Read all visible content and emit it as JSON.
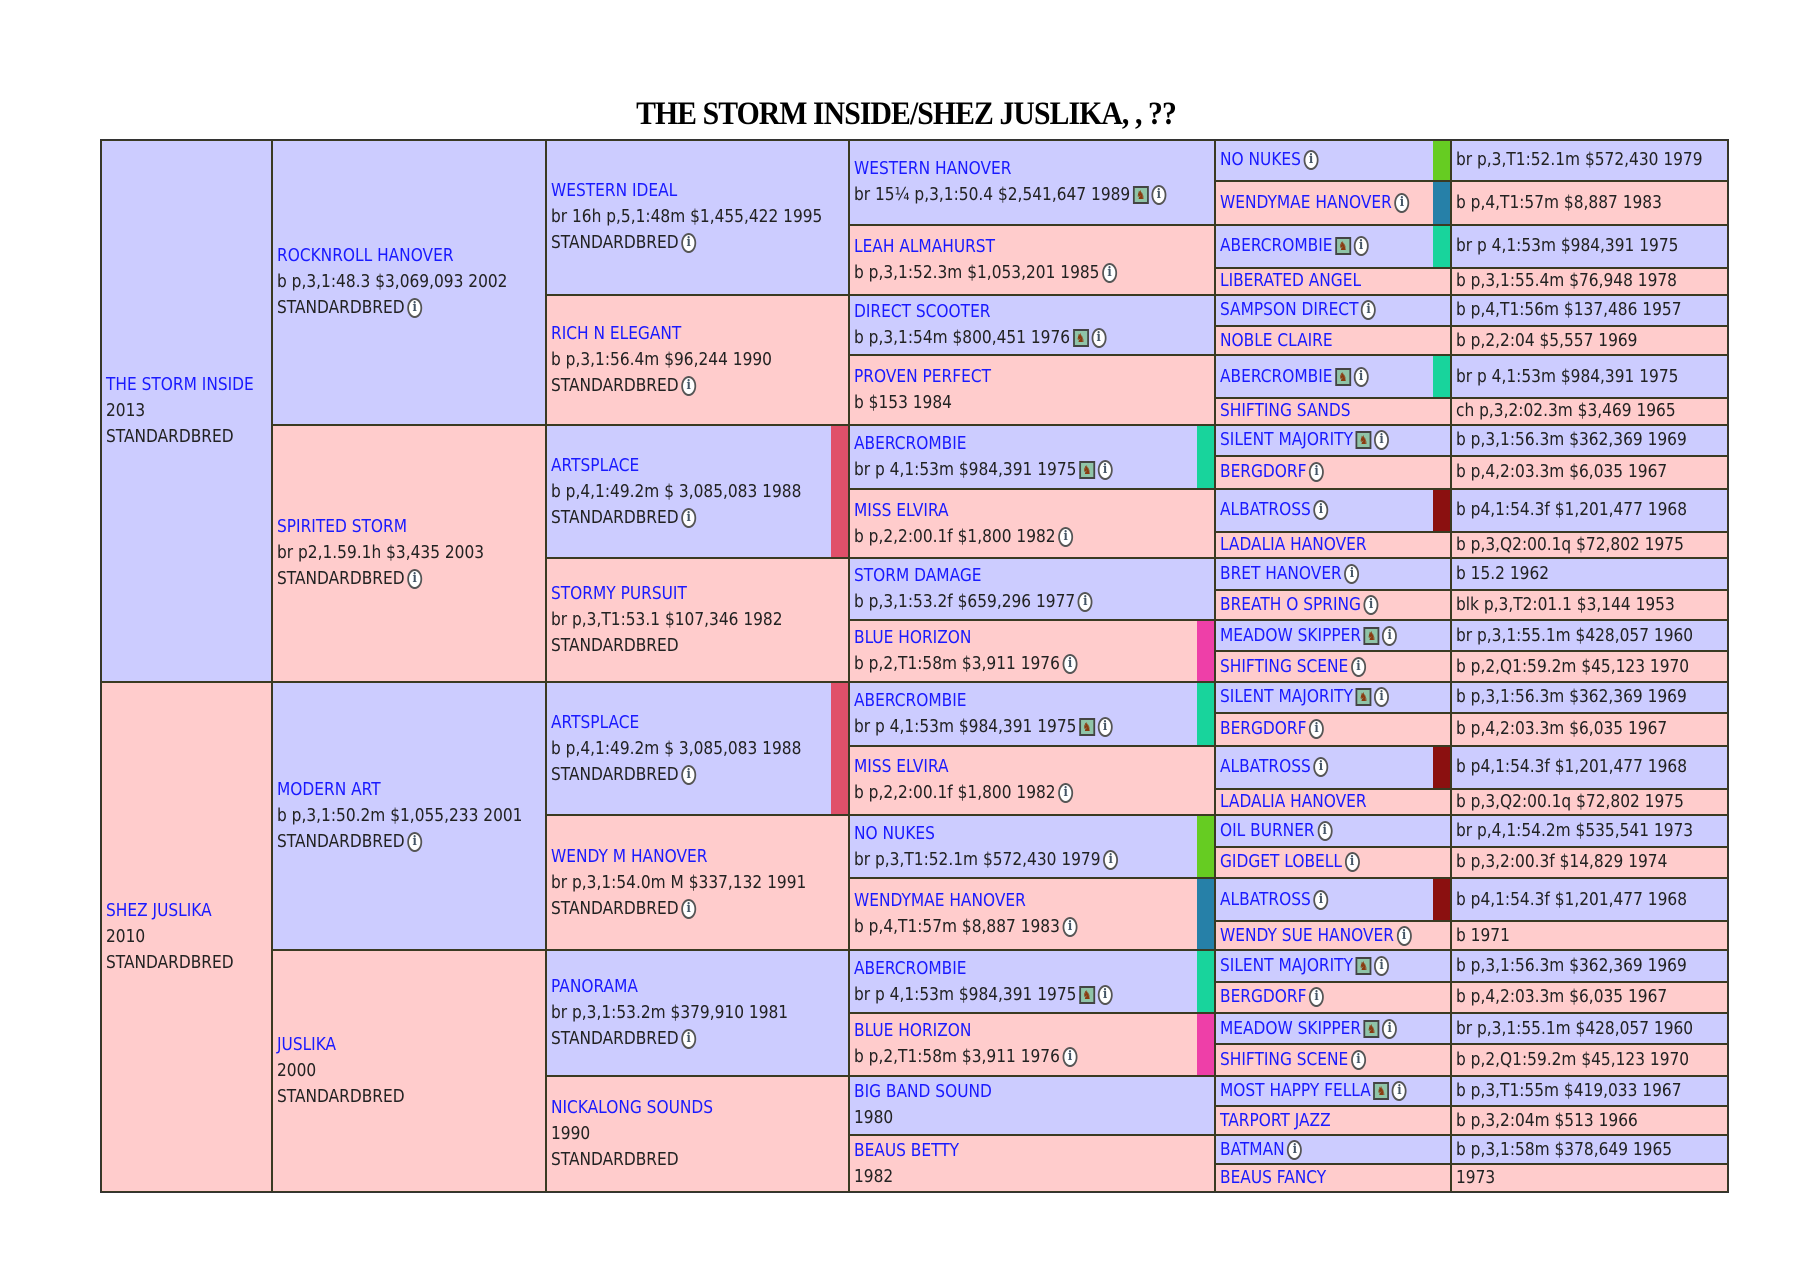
{
  "title": "THE STORM INSIDE/SHEZ JUSLIKA, , ??",
  "icons": {
    "info": "info-icon",
    "photo": "horse-photo-icon"
  },
  "colors": {
    "sire_bg": "#ccccff",
    "dam_bg": "#ffcccc",
    "name_link": "#1a1aff",
    "bar_green": "#66cc22",
    "bar_blue": "#2680a8",
    "bar_teal": "#18d49c",
    "bar_darkred": "#8b1010",
    "bar_crimson": "#e0506a",
    "bar_magenta": "#ee3fa8"
  },
  "gen1": [
    {
      "name": "THE STORM INSIDE",
      "lines": [
        "2013",
        "STANDARDBRED"
      ]
    },
    {
      "name": "SHEZ JUSLIKA",
      "lines": [
        "2010",
        "STANDARDBRED"
      ]
    }
  ],
  "gen2": [
    {
      "name": "ROCKNROLL HANOVER",
      "lines": [
        "b p,3,1:48.3 $3,069,093 2002",
        "STANDARDBRED"
      ],
      "info": true
    },
    {
      "name": "SPIRITED STORM",
      "lines": [
        "br p2,1.59.1h $3,435 2003",
        "STANDARDBRED"
      ],
      "info": true
    },
    {
      "name": "MODERN ART",
      "lines": [
        "b p,3,1:50.2m $1,055,233 2001",
        "STANDARDBRED"
      ],
      "info": true
    },
    {
      "name": "JUSLIKA",
      "lines": [
        "2000",
        "STANDARDBRED"
      ]
    }
  ],
  "gen3": [
    {
      "name": "WESTERN IDEAL",
      "lines": [
        "br 16h p,5,1:48m $1,455,422 1995",
        "STANDARDBRED"
      ],
      "info": true
    },
    {
      "name": "RICH N ELEGANT",
      "lines": [
        "b p,3,1:56.4m $96,244 1990",
        "STANDARDBRED"
      ],
      "info": true
    },
    {
      "name": "ARTSPLACE",
      "lines": [
        "b p,4,1:49.2m $ 3,085,083 1988",
        "STANDARDBRED"
      ],
      "info": true,
      "bar": "#e0506a"
    },
    {
      "name": "STORMY PURSUIT",
      "lines": [
        "br p,3,T1:53.1 $107,346 1982",
        "STANDARDBRED"
      ]
    },
    {
      "name": "ARTSPLACE",
      "lines": [
        "b p,4,1:49.2m $ 3,085,083 1988",
        "STANDARDBRED"
      ],
      "info": true,
      "bar": "#e0506a"
    },
    {
      "name": "WENDY M HANOVER",
      "lines": [
        "br p,3,1:54.0m M $337,132 1991",
        "STANDARDBRED"
      ],
      "info": true
    },
    {
      "name": "PANORAMA",
      "lines": [
        "br p,3,1:53.2m $379,910 1981",
        "STANDARDBRED"
      ],
      "info": true
    },
    {
      "name": "NICKALONG SOUNDS",
      "lines": [
        "1990",
        "STANDARDBRED"
      ]
    }
  ],
  "gen4": [
    {
      "name": "WESTERN HANOVER",
      "lines": [
        "br 15¼ p,3,1:50.4 $2,541,647 1989"
      ],
      "photo": true,
      "info": true
    },
    {
      "name": "LEAH ALMAHURST",
      "lines": [
        "b p,3,1:52.3m $1,053,201 1985"
      ],
      "info": true
    },
    {
      "name": "DIRECT SCOOTER",
      "lines": [
        "b p,3,1:54m $800,451 1976"
      ],
      "photo": true,
      "info": true
    },
    {
      "name": "PROVEN PERFECT",
      "lines": [
        "b $153 1984"
      ]
    },
    {
      "name": "ABERCROMBIE",
      "lines": [
        "br p 4,1:53m $984,391 1975"
      ],
      "photo": true,
      "info": true,
      "bar": "#18d49c"
    },
    {
      "name": "MISS ELVIRA",
      "lines": [
        "b p,2,2:00.1f $1,800 1982"
      ],
      "info": true
    },
    {
      "name": "STORM DAMAGE",
      "lines": [
        "b p,3,1:53.2f $659,296 1977"
      ],
      "info": true
    },
    {
      "name": "BLUE HORIZON",
      "lines": [
        "b p,2,T1:58m $3,911 1976"
      ],
      "info": true,
      "bar": "#ee3fa8"
    },
    {
      "name": "ABERCROMBIE",
      "lines": [
        "br p 4,1:53m $984,391 1975"
      ],
      "photo": true,
      "info": true,
      "bar": "#18d49c"
    },
    {
      "name": "MISS ELVIRA",
      "lines": [
        "b p,2,2:00.1f $1,800 1982"
      ],
      "info": true
    },
    {
      "name": "NO NUKES",
      "lines": [
        "br p,3,T1:52.1m $572,430 1979"
      ],
      "info": true,
      "bar": "#66cc22"
    },
    {
      "name": "WENDYMAE HANOVER",
      "lines": [
        "b p,4,T1:57m $8,887 1983"
      ],
      "info": true,
      "bar": "#2680a8"
    },
    {
      "name": "ABERCROMBIE",
      "lines": [
        "br p 4,1:53m $984,391 1975"
      ],
      "photo": true,
      "info": true,
      "bar": "#18d49c"
    },
    {
      "name": "BLUE HORIZON",
      "lines": [
        "b p,2,T1:58m $3,911 1976"
      ],
      "info": true,
      "bar": "#ee3fa8"
    },
    {
      "name": "BIG BAND SOUND",
      "lines": [
        "1980"
      ]
    },
    {
      "name": "BEAUS BETTY",
      "lines": [
        "1982"
      ]
    }
  ],
  "gen5": [
    {
      "name": "NO NUKES",
      "record": "br p,3,T1:52.1m $572,430 1979",
      "info": true,
      "bar": "#66cc22"
    },
    {
      "name": "WENDYMAE HANOVER",
      "record": "b p,4,T1:57m $8,887 1983",
      "info": true,
      "bar": "#2680a8"
    },
    {
      "name": "ABERCROMBIE",
      "record": "br p 4,1:53m $984,391 1975",
      "photo": true,
      "info": true,
      "bar": "#18d49c"
    },
    {
      "name": "LIBERATED ANGEL",
      "record": "b p,3,1:55.4m $76,948 1978"
    },
    {
      "name": "SAMPSON DIRECT",
      "record": "b p,4,T1:56m $137,486 1957",
      "info": true
    },
    {
      "name": "NOBLE CLAIRE",
      "record": "b p,2,2:04 $5,557 1969"
    },
    {
      "name": "ABERCROMBIE",
      "record": "br p 4,1:53m $984,391 1975",
      "photo": true,
      "info": true,
      "bar": "#18d49c"
    },
    {
      "name": "SHIFTING SANDS",
      "record": "ch p,3,2:02.3m $3,469 1965"
    },
    {
      "name": "SILENT MAJORITY",
      "record": "b p,3,1:56.3m $362,369 1969",
      "photo": true,
      "info": true
    },
    {
      "name": "BERGDORF",
      "record": "b p,4,2:03.3m $6,035 1967",
      "info": true
    },
    {
      "name": "ALBATROSS",
      "record": "b p4,1:54.3f $1,201,477 1968",
      "info": true,
      "bar": "#8b1010"
    },
    {
      "name": "LADALIA HANOVER",
      "record": "b p,3,Q2:00.1q $72,802 1975"
    },
    {
      "name": "BRET HANOVER",
      "record": "b 15.2 1962",
      "info": true
    },
    {
      "name": "BREATH O SPRING",
      "record": "blk p,3,T2:01.1 $3,144 1953",
      "info": true
    },
    {
      "name": "MEADOW SKIPPER",
      "record": "br p,3,1:55.1m $428,057 1960",
      "photo": true,
      "info": true
    },
    {
      "name": "SHIFTING SCENE",
      "record": "b p,2,Q1:59.2m $45,123 1970",
      "info": true
    },
    {
      "name": "SILENT MAJORITY",
      "record": "b p,3,1:56.3m $362,369 1969",
      "photo": true,
      "info": true
    },
    {
      "name": "BERGDORF",
      "record": "b p,4,2:03.3m $6,035 1967",
      "info": true
    },
    {
      "name": "ALBATROSS",
      "record": "b p4,1:54.3f $1,201,477 1968",
      "info": true,
      "bar": "#8b1010"
    },
    {
      "name": "LADALIA HANOVER",
      "record": "b p,3,Q2:00.1q $72,802 1975"
    },
    {
      "name": "OIL BURNER",
      "record": "br p,4,1:54.2m $535,541 1973",
      "info": true
    },
    {
      "name": "GIDGET LOBELL",
      "record": "b p,3,2:00.3f $14,829 1974",
      "info": true
    },
    {
      "name": "ALBATROSS",
      "record": "b p4,1:54.3f $1,201,477 1968",
      "info": true,
      "bar": "#8b1010"
    },
    {
      "name": "WENDY SUE HANOVER",
      "record": "b 1971",
      "info": true
    },
    {
      "name": "SILENT MAJORITY",
      "record": "b p,3,1:56.3m $362,369 1969",
      "photo": true,
      "info": true
    },
    {
      "name": "BERGDORF",
      "record": "b p,4,2:03.3m $6,035 1967",
      "info": true
    },
    {
      "name": "MEADOW SKIPPER",
      "record": "br p,3,1:55.1m $428,057 1960",
      "photo": true,
      "info": true
    },
    {
      "name": "SHIFTING SCENE",
      "record": "b p,2,Q1:59.2m $45,123 1970",
      "info": true
    },
    {
      "name": "MOST HAPPY FELLA",
      "record": "b p,3,T1:55m $419,033 1967",
      "photo": true,
      "info": true
    },
    {
      "name": "TARPORT JAZZ",
      "record": "b p,3,2:04m $513 1966"
    },
    {
      "name": "BATMAN",
      "record": "b p,3,1:58m $378,649 1965",
      "info": true
    },
    {
      "name": "BEAUS FANCY",
      "record": "1973"
    }
  ]
}
